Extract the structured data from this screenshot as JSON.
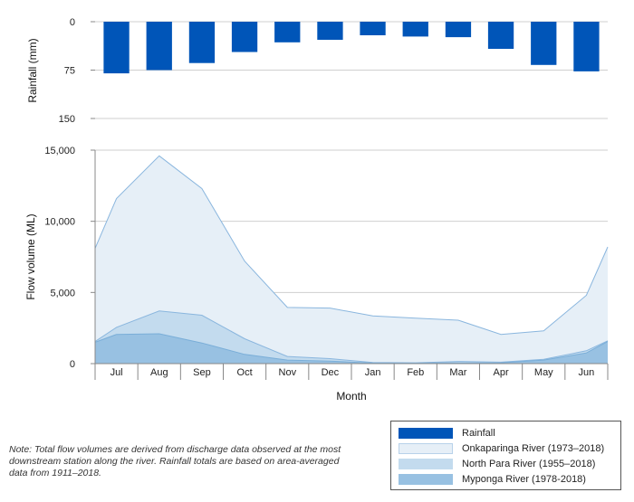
{
  "chart_data": {
    "type": "area",
    "categories": [
      "Jul",
      "Aug",
      "Sep",
      "Oct",
      "Nov",
      "Dec",
      "Jan",
      "Feb",
      "Mar",
      "Apr",
      "May",
      "Jun"
    ],
    "xlabel": "Month",
    "rainfall": {
      "type": "bar",
      "ylabel": "Rainfall (mm)",
      "ylim": [
        150,
        0
      ],
      "yticks": [
        "0",
        "75",
        "150"
      ],
      "values": [
        80,
        75,
        64,
        47,
        32,
        28,
        21,
        23,
        24,
        42,
        67,
        77
      ],
      "color": "#0055b8"
    },
    "flow": {
      "type": "area",
      "ylabel": "Flow volume (ML)",
      "ylim": [
        0,
        15000
      ],
      "yticks": [
        "0",
        "5,000",
        "10,000",
        "15,000"
      ],
      "edge_left": {
        "onkaparinga": 8100,
        "north_para": 1550,
        "myponga": 1500
      },
      "edge_right": {
        "onkaparinga": 8200,
        "north_para": 1600,
        "myponga": 1550
      },
      "series": [
        {
          "name": "Onkaparinga River (1973–2018)",
          "color": "#e6eff7",
          "stroke": "#8ab6de",
          "values": [
            11600,
            14600,
            12300,
            7200,
            3950,
            3900,
            3350,
            3200,
            3050,
            2050,
            2300,
            4800
          ]
        },
        {
          "name": "North Para River (1955–2018)",
          "color": "#c3dbee",
          "stroke": "#8ab6de",
          "values": [
            2550,
            3700,
            3400,
            1750,
            500,
            350,
            80,
            60,
            150,
            100,
            300,
            900
          ]
        },
        {
          "name": "Myponga River (1978-2018)",
          "color": "#98c1e2",
          "stroke": "#7aaed8",
          "values": [
            2050,
            2100,
            1450,
            650,
            250,
            180,
            30,
            30,
            50,
            60,
            250,
            750
          ]
        }
      ]
    },
    "legend": {
      "placement": "bottom-right",
      "items": [
        {
          "label": "Rainfall",
          "color": "#0055b8"
        },
        {
          "label": "Onkaparinga River (1973–2018)",
          "color": "#e6eff7"
        },
        {
          "label": "North Para River (1955–2018)",
          "color": "#c3dbee"
        },
        {
          "label": "Myponga River (1978-2018)",
          "color": "#98c1e2"
        }
      ]
    },
    "note": "Note: Total flow volumes are derived from discharge data observed at the most downstream station along the river. Rainfall totals are based on area-averaged data from 1911–2018."
  }
}
